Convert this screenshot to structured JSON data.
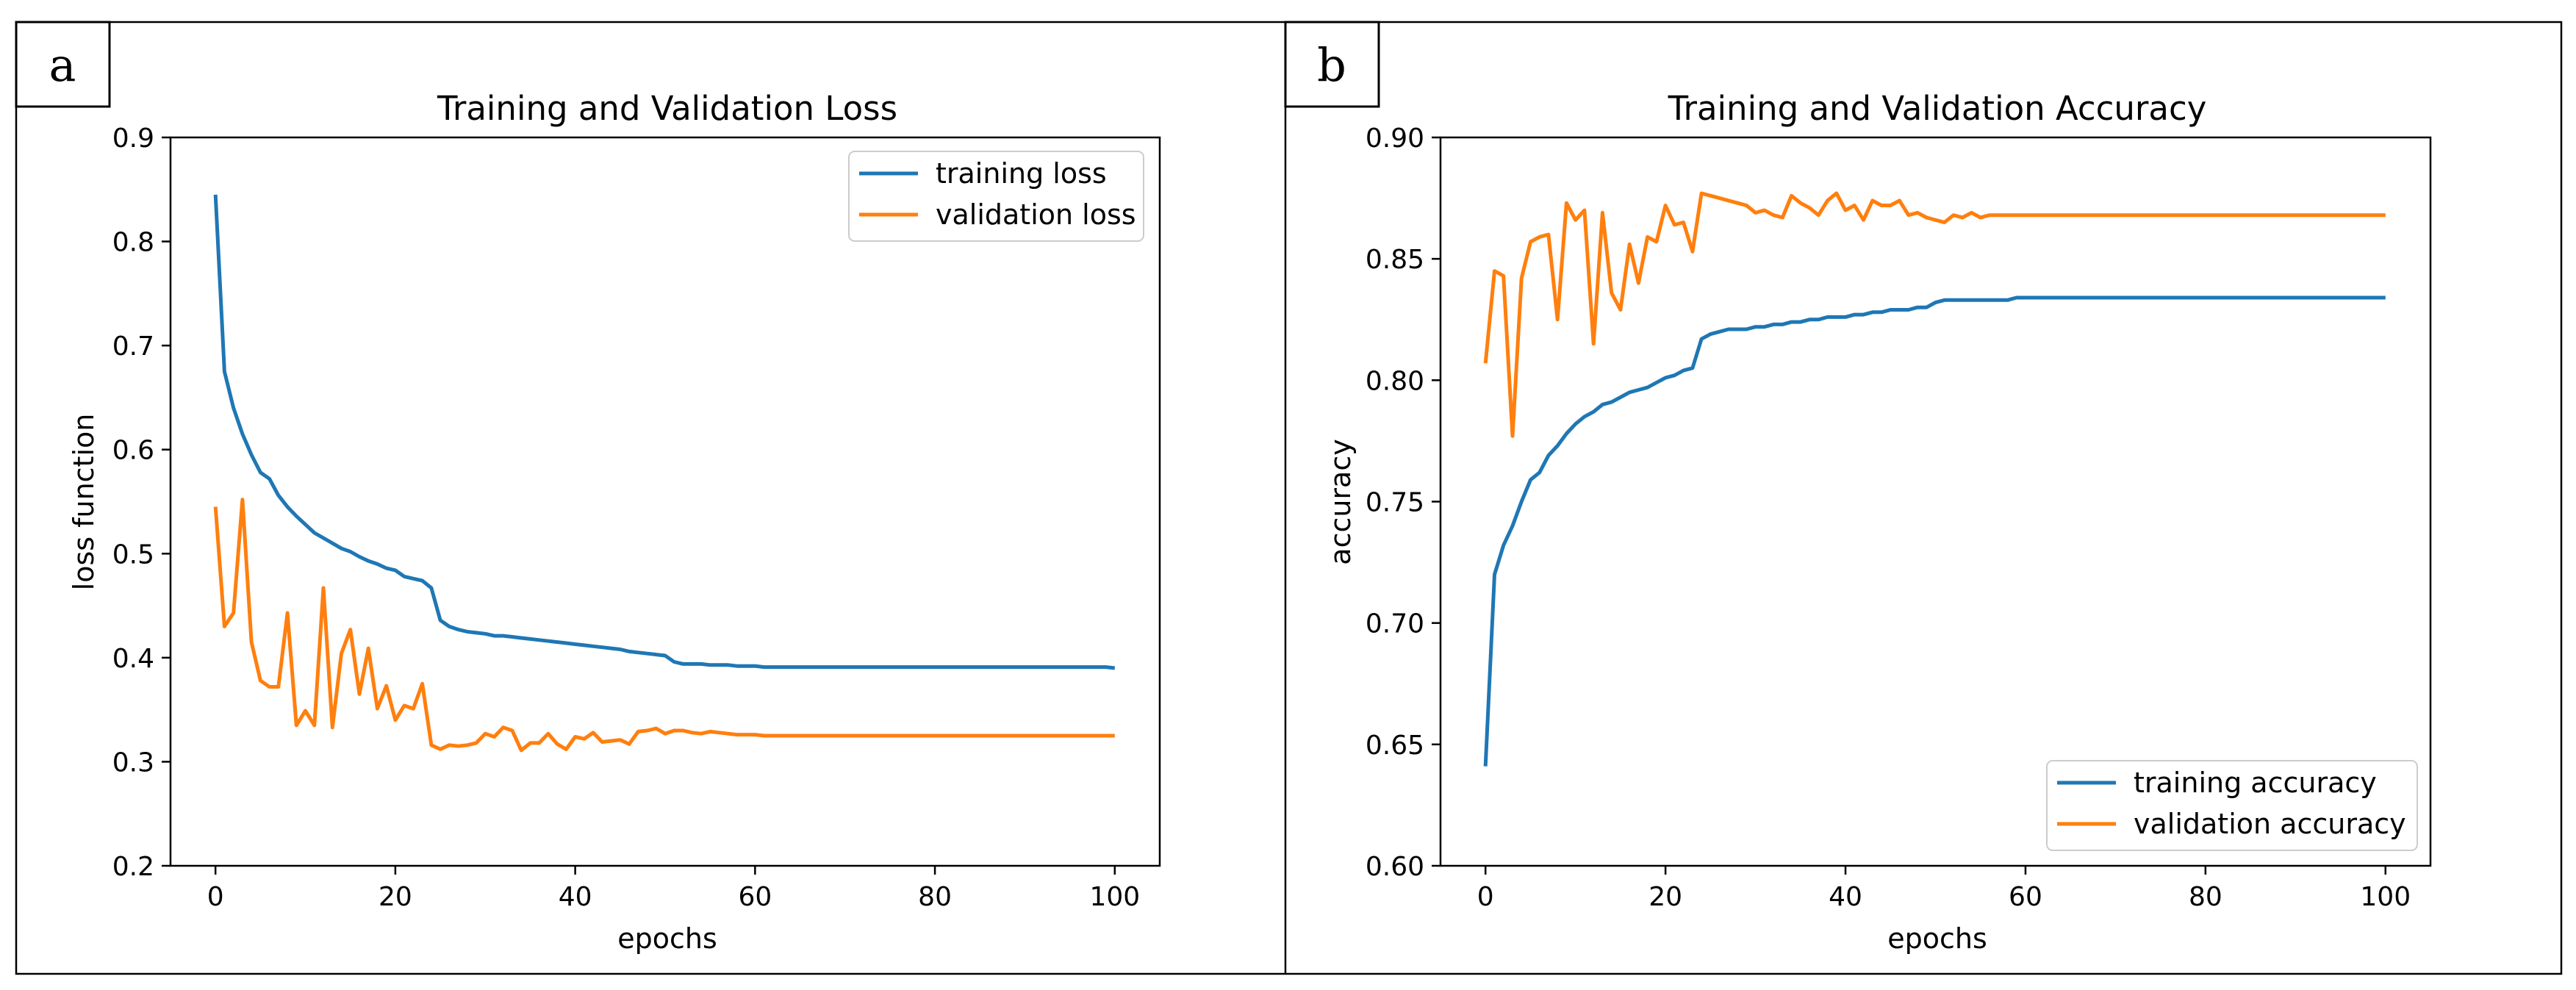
{
  "panels": [
    {
      "letter": "a"
    },
    {
      "letter": "b"
    }
  ],
  "colors": {
    "series1": "#1f77b4",
    "series2": "#ff7f0e"
  },
  "chart_data": [
    {
      "type": "line",
      "title": "Training and Validation Loss",
      "xlabel": "epochs",
      "ylabel": "loss function",
      "xlim": [
        -5,
        105
      ],
      "ylim": [
        0.2,
        0.9
      ],
      "xticks": [
        0,
        20,
        40,
        60,
        80,
        100
      ],
      "yticks": [
        0.2,
        0.3,
        0.4,
        0.5,
        0.6,
        0.7,
        0.8,
        0.9
      ],
      "ytick_labels": [
        "0.2",
        "0.3",
        "0.4",
        "0.5",
        "0.6",
        "0.7",
        "0.8",
        "0.9"
      ],
      "grid": false,
      "legend": "top-right",
      "series": [
        {
          "name": "training loss",
          "color": "#1f77b4",
          "values": [
            0.845,
            0.675,
            0.64,
            0.615,
            0.595,
            0.578,
            0.572,
            0.556,
            0.545,
            0.536,
            0.528,
            0.52,
            0.515,
            0.51,
            0.505,
            0.502,
            0.497,
            0.493,
            0.49,
            0.486,
            0.484,
            0.478,
            0.476,
            0.474,
            0.467,
            0.436,
            0.43,
            0.427,
            0.425,
            0.424,
            0.423,
            0.421,
            0.421,
            0.42,
            0.419,
            0.418,
            0.417,
            0.416,
            0.415,
            0.414,
            0.413,
            0.412,
            0.411,
            0.41,
            0.409,
            0.408,
            0.406,
            0.405,
            0.404,
            0.403,
            0.402,
            0.396,
            0.394,
            0.394,
            0.394,
            0.393,
            0.393,
            0.393,
            0.392,
            0.392,
            0.392,
            0.391,
            0.391,
            0.391,
            0.391,
            0.391,
            0.391,
            0.391,
            0.391,
            0.391,
            0.391,
            0.391,
            0.391,
            0.391,
            0.391,
            0.391,
            0.391,
            0.391,
            0.391,
            0.391,
            0.391,
            0.391,
            0.391,
            0.391,
            0.391,
            0.391,
            0.391,
            0.391,
            0.391,
            0.391,
            0.391,
            0.391,
            0.391,
            0.391,
            0.391,
            0.391,
            0.391,
            0.391,
            0.391,
            0.391,
            0.39
          ]
        },
        {
          "name": "validation loss",
          "color": "#ff7f0e",
          "values": [
            0.545,
            0.43,
            0.443,
            0.552,
            0.415,
            0.378,
            0.372,
            0.372,
            0.443,
            0.335,
            0.349,
            0.335,
            0.467,
            0.333,
            0.404,
            0.427,
            0.365,
            0.409,
            0.351,
            0.373,
            0.34,
            0.354,
            0.351,
            0.375,
            0.316,
            0.312,
            0.316,
            0.315,
            0.316,
            0.318,
            0.327,
            0.324,
            0.333,
            0.33,
            0.311,
            0.318,
            0.318,
            0.327,
            0.317,
            0.312,
            0.324,
            0.322,
            0.328,
            0.319,
            0.32,
            0.321,
            0.317,
            0.329,
            0.33,
            0.332,
            0.327,
            0.33,
            0.33,
            0.328,
            0.327,
            0.329,
            0.328,
            0.327,
            0.326,
            0.326,
            0.326,
            0.325,
            0.325,
            0.325,
            0.325,
            0.325,
            0.325,
            0.325,
            0.325,
            0.325,
            0.325,
            0.325,
            0.325,
            0.325,
            0.325,
            0.325,
            0.325,
            0.325,
            0.325,
            0.325,
            0.325,
            0.325,
            0.325,
            0.325,
            0.325,
            0.325,
            0.325,
            0.325,
            0.325,
            0.325,
            0.325,
            0.325,
            0.325,
            0.325,
            0.325,
            0.325,
            0.325,
            0.325,
            0.325,
            0.325,
            0.325
          ]
        }
      ]
    },
    {
      "type": "line",
      "title": "Training and Validation Accuracy",
      "xlabel": "epochs",
      "ylabel": "accuracy",
      "xlim": [
        -5,
        105
      ],
      "ylim": [
        0.6,
        0.9
      ],
      "xticks": [
        0,
        20,
        40,
        60,
        80,
        100
      ],
      "yticks": [
        0.6,
        0.65,
        0.7,
        0.75,
        0.8,
        0.85,
        0.9
      ],
      "ytick_labels": [
        "0.60",
        "0.65",
        "0.70",
        "0.75",
        "0.80",
        "0.85",
        "0.90"
      ],
      "grid": false,
      "legend": "bottom-right",
      "series": [
        {
          "name": "training accuracy",
          "color": "#1f77b4",
          "values": [
            0.641,
            0.72,
            0.732,
            0.74,
            0.75,
            0.759,
            0.762,
            0.769,
            0.773,
            0.778,
            0.782,
            0.785,
            0.787,
            0.79,
            0.791,
            0.793,
            0.795,
            0.796,
            0.797,
            0.799,
            0.801,
            0.802,
            0.804,
            0.805,
            0.817,
            0.819,
            0.82,
            0.821,
            0.821,
            0.821,
            0.822,
            0.822,
            0.823,
            0.823,
            0.824,
            0.824,
            0.825,
            0.825,
            0.826,
            0.826,
            0.826,
            0.827,
            0.827,
            0.828,
            0.828,
            0.829,
            0.829,
            0.829,
            0.83,
            0.83,
            0.832,
            0.833,
            0.833,
            0.833,
            0.833,
            0.833,
            0.833,
            0.833,
            0.833,
            0.834,
            0.834,
            0.834,
            0.834,
            0.834,
            0.834,
            0.834,
            0.834,
            0.834,
            0.834,
            0.834,
            0.834,
            0.834,
            0.834,
            0.834,
            0.834,
            0.834,
            0.834,
            0.834,
            0.834,
            0.834,
            0.834,
            0.834,
            0.834,
            0.834,
            0.834,
            0.834,
            0.834,
            0.834,
            0.834,
            0.834,
            0.834,
            0.834,
            0.834,
            0.834,
            0.834,
            0.834,
            0.834,
            0.834,
            0.834,
            0.834,
            0.834
          ]
        },
        {
          "name": "validation accuracy",
          "color": "#ff7f0e",
          "values": [
            0.807,
            0.845,
            0.843,
            0.777,
            0.842,
            0.857,
            0.859,
            0.86,
            0.825,
            0.873,
            0.866,
            0.87,
            0.815,
            0.869,
            0.836,
            0.829,
            0.856,
            0.84,
            0.859,
            0.857,
            0.872,
            0.864,
            0.865,
            0.853,
            0.877,
            0.876,
            0.875,
            0.874,
            0.873,
            0.872,
            0.869,
            0.87,
            0.868,
            0.867,
            0.876,
            0.873,
            0.871,
            0.868,
            0.874,
            0.877,
            0.87,
            0.872,
            0.866,
            0.874,
            0.872,
            0.872,
            0.874,
            0.868,
            0.869,
            0.867,
            0.866,
            0.865,
            0.868,
            0.867,
            0.869,
            0.867,
            0.868,
            0.868,
            0.868,
            0.868,
            0.868,
            0.868,
            0.868,
            0.868,
            0.868,
            0.868,
            0.868,
            0.868,
            0.868,
            0.868,
            0.868,
            0.868,
            0.868,
            0.868,
            0.868,
            0.868,
            0.868,
            0.868,
            0.868,
            0.868,
            0.868,
            0.868,
            0.868,
            0.868,
            0.868,
            0.868,
            0.868,
            0.868,
            0.868,
            0.868,
            0.868,
            0.868,
            0.868,
            0.868,
            0.868,
            0.868,
            0.868,
            0.868,
            0.868,
            0.868,
            0.868
          ]
        }
      ]
    }
  ]
}
